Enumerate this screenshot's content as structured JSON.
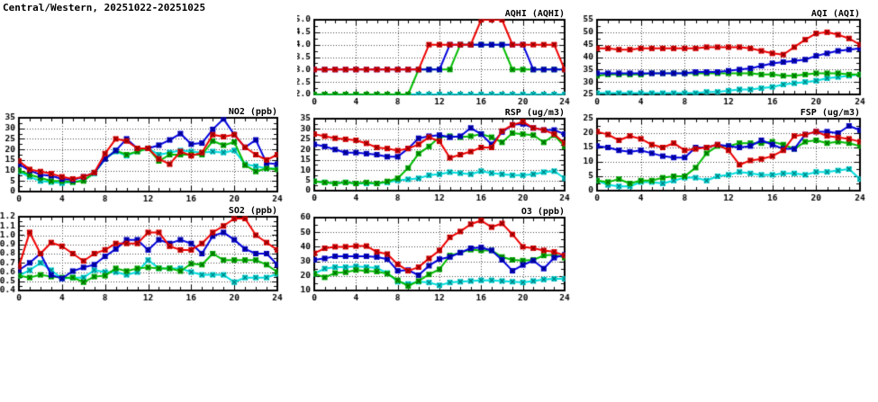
{
  "title": "Central/Western, 20251022-20251025",
  "station": "Central/Western",
  "date_range": "20251022-20251025",
  "series_colors": [
    "#00dddd",
    "#00bb00",
    "#0000dd",
    "#ee0000"
  ],
  "chart_data": [
    {
      "id": "aqhi",
      "type": "line",
      "title": "AQHI (AQHI)",
      "x_range": [
        0,
        24
      ],
      "x_major": 4,
      "x_minor": 1,
      "x_tick_labels": [
        "0",
        "4",
        "8",
        "12",
        "16",
        "20",
        "24"
      ],
      "y_range": [
        2.0,
        5.0
      ],
      "y_step": 0.5,
      "y_decimals": 1,
      "y_tick_labels": [
        "2.0",
        "2.5",
        "3.0",
        "3.5",
        "4.0",
        "4.5",
        "5.0"
      ],
      "grid": true,
      "legend": "none",
      "series": [
        {
          "name": "cyan",
          "color": "#00dddd",
          "values": [
            2,
            2,
            2,
            2,
            2,
            2,
            2,
            2,
            2,
            2,
            2,
            2,
            2,
            2,
            2,
            2,
            2,
            2,
            2,
            2,
            2,
            2,
            2,
            2,
            2
          ]
        },
        {
          "name": "green",
          "color": "#00bb00",
          "values": [
            2,
            2,
            2,
            2,
            2,
            2,
            2,
            2,
            2,
            2,
            3,
            3,
            3,
            3,
            4,
            4,
            4,
            4,
            4,
            3,
            3,
            3,
            3,
            3,
            3
          ]
        },
        {
          "name": "blue",
          "color": "#0000dd",
          "values": [
            3,
            3,
            3,
            3,
            3,
            3,
            3,
            3,
            3,
            3,
            3,
            3,
            3,
            4,
            4,
            4,
            4,
            4,
            4,
            4,
            4,
            3,
            3,
            3,
            3
          ]
        },
        {
          "name": "red",
          "color": "#ee0000",
          "values": [
            3,
            3,
            3,
            3,
            3,
            3,
            3,
            3,
            3,
            3,
            3,
            4,
            4,
            4,
            4,
            4,
            5,
            5,
            5,
            4,
            4,
            4,
            4,
            4,
            3
          ]
        }
      ]
    },
    {
      "id": "aqi",
      "type": "line",
      "title": "AQI (AQI)",
      "x_range": [
        0,
        24
      ],
      "x_major": 4,
      "x_minor": 1,
      "x_tick_labels": [
        "0",
        "4",
        "8",
        "12",
        "16",
        "20",
        "24"
      ],
      "y_range": [
        25,
        55
      ],
      "y_step": 5,
      "y_decimals": 0,
      "y_tick_labels": [
        "25",
        "30",
        "35",
        "40",
        "45",
        "50",
        "55"
      ],
      "grid": true,
      "legend": "none",
      "series": [
        {
          "name": "cyan",
          "color": "#00dddd",
          "values": [
            25.5,
            25.5,
            25.5,
            25.5,
            25.5,
            25.5,
            25.5,
            25.5,
            25.5,
            25.5,
            26,
            26,
            26.5,
            27,
            27,
            27.5,
            28,
            29,
            29.5,
            30,
            30.5,
            31.5,
            32,
            32.5,
            33
          ]
        },
        {
          "name": "green",
          "color": "#00bb00",
          "values": [
            32.5,
            33,
            33,
            33,
            33,
            33.5,
            33.5,
            33.5,
            33.5,
            33.5,
            33.5,
            33.5,
            33.5,
            33.5,
            33.5,
            33,
            33,
            32.5,
            32.5,
            33,
            33.5,
            33.5,
            33.5,
            33,
            33
          ]
        },
        {
          "name": "blue",
          "color": "#0000dd",
          "values": [
            33.5,
            33.5,
            33.5,
            33.5,
            33.5,
            33.5,
            33.5,
            33.5,
            33.5,
            34,
            34,
            34,
            34.5,
            35,
            35.5,
            36.5,
            37.5,
            38,
            38.5,
            39,
            40.5,
            41.5,
            42.5,
            43,
            43.5
          ]
        },
        {
          "name": "red",
          "color": "#ee0000",
          "values": [
            43.5,
            43.5,
            43,
            43,
            43.5,
            43.5,
            43.5,
            43.5,
            43.5,
            43.5,
            44,
            44,
            44,
            44,
            43.5,
            42.5,
            41.5,
            41,
            44,
            47,
            49.5,
            50,
            49,
            47.5,
            45
          ]
        }
      ]
    },
    {
      "id": "no2",
      "type": "line",
      "title": "NO2 (ppb)",
      "x_range": [
        0,
        24
      ],
      "x_major": 4,
      "x_minor": 1,
      "x_tick_labels": [
        "0",
        "4",
        "8",
        "12",
        "16",
        "20",
        "24"
      ],
      "y_range": [
        0,
        35
      ],
      "y_step": 5,
      "y_decimals": 0,
      "y_tick_labels": [
        "0",
        "5",
        "10",
        "15",
        "20",
        "25",
        "30",
        "35"
      ],
      "grid": true,
      "legend": "none",
      "series": [
        {
          "name": "cyan",
          "color": "#00dddd",
          "values": [
            9.5,
            7,
            5,
            4.5,
            4,
            4.5,
            5.5,
            8.5,
            15.5,
            19,
            17,
            19,
            20.5,
            17.5,
            18.5,
            19.5,
            19,
            18.5,
            19,
            18.5,
            19.5,
            13,
            12,
            11,
            11
          ]
        },
        {
          "name": "green",
          "color": "#00bb00",
          "values": [
            10,
            8,
            6.5,
            5,
            5,
            4.5,
            5,
            9,
            15.5,
            19.5,
            17.5,
            19,
            20.5,
            14.5,
            17.5,
            17.5,
            17.5,
            17.5,
            24,
            22,
            23.5,
            12.5,
            9.5,
            11,
            10.5
          ]
        },
        {
          "name": "blue",
          "color": "#0000dd",
          "values": [
            13,
            10,
            8,
            7.5,
            6,
            5.5,
            7,
            9,
            15.5,
            19.5,
            25,
            20.5,
            20.5,
            22,
            24.5,
            27.5,
            22.5,
            23,
            29.5,
            34.5,
            27,
            21,
            24.5,
            13.5,
            13
          ]
        },
        {
          "name": "red",
          "color": "#ee0000",
          "values": [
            14.5,
            10.5,
            9.5,
            8.5,
            7,
            6,
            7,
            9,
            18,
            25,
            24,
            20.5,
            20.5,
            15.5,
            13,
            19,
            17,
            18.5,
            27,
            26,
            27,
            21,
            17.5,
            15,
            17.5
          ]
        }
      ]
    },
    {
      "id": "rsp",
      "type": "line",
      "title": "RSP (ug/m3)",
      "x_range": [
        0,
        24
      ],
      "x_major": 4,
      "x_minor": 1,
      "x_tick_labels": [
        "0",
        "4",
        "8",
        "12",
        "16",
        "20",
        "24"
      ],
      "y_range": [
        0,
        35
      ],
      "y_step": 5,
      "y_decimals": 0,
      "y_tick_labels": [
        "0",
        "5",
        "10",
        "15",
        "20",
        "25",
        "30",
        "35"
      ],
      "grid": true,
      "legend": "none",
      "series": [
        {
          "name": "cyan",
          "color": "#00dddd",
          "values": [
            4.5,
            4,
            3.5,
            4,
            3.5,
            3.5,
            3.5,
            4,
            5,
            5.5,
            6,
            7.5,
            8,
            9,
            8.5,
            8,
            9.5,
            8.5,
            8,
            7.5,
            7.5,
            8,
            9,
            9.5,
            6
          ]
        },
        {
          "name": "green",
          "color": "#00bb00",
          "values": [
            4.5,
            4,
            3.5,
            4,
            3.5,
            4,
            3.5,
            4.5,
            6,
            11,
            18,
            21.5,
            26,
            26.5,
            26,
            26.5,
            27.5,
            26,
            23.5,
            28,
            27.5,
            27,
            23.5,
            27,
            21.5
          ]
        },
        {
          "name": "blue",
          "color": "#0000dd",
          "values": [
            22.5,
            21.5,
            20,
            18.5,
            18.5,
            18,
            17.5,
            16.5,
            16.5,
            20.5,
            25.5,
            26.5,
            27,
            26,
            26.5,
            30.5,
            27.5,
            22.5,
            28.5,
            32,
            32.5,
            30.5,
            29.5,
            29.5,
            27.5
          ]
        },
        {
          "name": "red",
          "color": "#ee0000",
          "values": [
            27.5,
            26.5,
            25.5,
            25,
            24.5,
            23,
            21,
            20.5,
            19.5,
            20.5,
            22.5,
            26,
            24,
            16,
            17.5,
            19,
            21,
            21,
            29,
            32,
            33.5,
            30.5,
            29.5,
            27.5,
            23
          ]
        }
      ]
    },
    {
      "id": "fsp",
      "type": "line",
      "title": "FSP (ug/m3)",
      "x_range": [
        0,
        24
      ],
      "x_major": 4,
      "x_minor": 1,
      "x_tick_labels": [
        "0",
        "4",
        "8",
        "12",
        "16",
        "20",
        "24"
      ],
      "y_range": [
        0,
        25
      ],
      "y_step": 5,
      "y_decimals": 0,
      "y_tick_labels": [
        "0",
        "5",
        "10",
        "15",
        "20",
        "25"
      ],
      "grid": true,
      "legend": "none",
      "series": [
        {
          "name": "cyan",
          "color": "#00dddd",
          "values": [
            3.5,
            2,
            1.5,
            1.5,
            3,
            3,
            2.5,
            3.5,
            4.5,
            4.5,
            3.5,
            5,
            5.5,
            6.5,
            6,
            5.5,
            5.5,
            6,
            6,
            5.5,
            6.5,
            6.5,
            7,
            7.5,
            4
          ]
        },
        {
          "name": "green",
          "color": "#00bb00",
          "values": [
            3.5,
            3,
            4,
            2.5,
            3.5,
            3.5,
            4.5,
            5,
            5,
            8,
            13,
            15.5,
            15.5,
            16.5,
            16.5,
            16.5,
            17,
            16,
            14.5,
            17,
            17.5,
            16.5,
            17,
            16.5,
            15.5
          ]
        },
        {
          "name": "blue",
          "color": "#0000dd",
          "values": [
            15.5,
            15,
            14,
            13.5,
            14,
            13,
            12,
            11.5,
            11.5,
            15,
            15,
            16,
            15.5,
            15,
            15.5,
            17.5,
            16,
            14.5,
            14.5,
            19.5,
            20.5,
            20.5,
            20,
            22.5,
            21
          ]
        },
        {
          "name": "red",
          "color": "#ee0000",
          "values": [
            20.5,
            19.5,
            17.5,
            19,
            18,
            16,
            15,
            16.5,
            14,
            14.5,
            15,
            16,
            14,
            9,
            10.5,
            11,
            12,
            14,
            19,
            19.5,
            20.5,
            19,
            18.5,
            18,
            17
          ]
        }
      ]
    },
    {
      "id": "so2",
      "type": "line",
      "title": "SO2 (ppb)",
      "x_range": [
        0,
        24
      ],
      "x_major": 4,
      "x_minor": 1,
      "x_tick_labels": [
        "0",
        "4",
        "8",
        "12",
        "16",
        "20",
        "24"
      ],
      "y_range": [
        0.4,
        1.2
      ],
      "y_step": 0.1,
      "y_decimals": 1,
      "y_tick_labels": [
        "0.4",
        "0.5",
        "0.6",
        "0.7",
        "0.8",
        "0.9",
        "1.0",
        "1.1",
        "1.2"
      ],
      "grid": true,
      "legend": "none",
      "series": [
        {
          "name": "cyan",
          "color": "#00dddd",
          "values": [
            0.56,
            0.62,
            0.7,
            0.62,
            0.53,
            0.54,
            0.54,
            0.62,
            0.6,
            0.6,
            0.57,
            0.6,
            0.73,
            0.64,
            0.64,
            0.64,
            0.6,
            0.57,
            0.57,
            0.57,
            0.49,
            0.54,
            0.54,
            0.54,
            0.58
          ]
        },
        {
          "name": "green",
          "color": "#00bb00",
          "values": [
            0.56,
            0.54,
            0.57,
            0.55,
            0.54,
            0.54,
            0.49,
            0.55,
            0.56,
            0.64,
            0.61,
            0.64,
            0.65,
            0.64,
            0.64,
            0.61,
            0.69,
            0.68,
            0.8,
            0.73,
            0.73,
            0.73,
            0.73,
            0.68,
            0.6
          ]
        },
        {
          "name": "blue",
          "color": "#0000dd",
          "values": [
            0.62,
            0.7,
            0.8,
            0.57,
            0.53,
            0.61,
            0.65,
            0.68,
            0.77,
            0.85,
            0.95,
            0.95,
            0.84,
            0.95,
            0.91,
            0.95,
            0.91,
            0.8,
            0.99,
            1.03,
            0.95,
            0.85,
            0.8,
            0.8,
            0.68
          ]
        },
        {
          "name": "red",
          "color": "#ee0000",
          "values": [
            0.66,
            1.03,
            0.8,
            0.92,
            0.88,
            0.8,
            0.72,
            0.8,
            0.84,
            0.91,
            0.91,
            0.91,
            1.03,
            1.03,
            0.88,
            0.84,
            0.84,
            0.91,
            1.03,
            1.1,
            1.18,
            1.18,
            1.0,
            0.92,
            0.84
          ]
        }
      ]
    },
    {
      "id": "o3",
      "type": "line",
      "title": "O3 (ppb)",
      "x_range": [
        0,
        24
      ],
      "x_major": 4,
      "x_minor": 1,
      "x_tick_labels": [
        "0",
        "4",
        "8",
        "12",
        "16",
        "20",
        "24"
      ],
      "y_range": [
        10,
        60
      ],
      "y_step": 10,
      "y_decimals": 0,
      "y_tick_labels": [
        "10",
        "20",
        "30",
        "40",
        "50",
        "60"
      ],
      "grid": true,
      "legend": "none",
      "series": [
        {
          "name": "cyan",
          "color": "#00dddd",
          "values": [
            21.5,
            25,
            26,
            26,
            26.5,
            26,
            25.5,
            22,
            16,
            14.5,
            16,
            15.5,
            13.5,
            15.5,
            16,
            16.5,
            17,
            17,
            16.5,
            16,
            15.5,
            16.5,
            17.5,
            18,
            18
          ]
        },
        {
          "name": "green",
          "color": "#00bb00",
          "values": [
            21.5,
            19,
            22,
            22.5,
            24,
            23.5,
            23,
            21.5,
            17,
            13,
            16.5,
            21,
            24.5,
            34,
            36,
            38,
            37.5,
            37.5,
            33,
            31,
            30.5,
            31,
            34,
            34.5,
            32.5
          ]
        },
        {
          "name": "blue",
          "color": "#0000dd",
          "values": [
            31,
            32,
            33.5,
            33.5,
            33.5,
            33.5,
            33,
            31.5,
            23.5,
            24,
            20.5,
            27,
            31.5,
            33,
            36,
            39,
            39.5,
            37.5,
            31,
            23.5,
            27.5,
            30.5,
            25,
            32.5,
            34.5
          ]
        },
        {
          "name": "red",
          "color": "#ee0000",
          "values": [
            35.5,
            39,
            40,
            40,
            40.5,
            40.5,
            36.5,
            35,
            28,
            23.5,
            26,
            32,
            37.5,
            46.5,
            50.5,
            55.5,
            58,
            53.5,
            56,
            48.5,
            40,
            39,
            37.5,
            36.5,
            34
          ]
        }
      ]
    }
  ]
}
